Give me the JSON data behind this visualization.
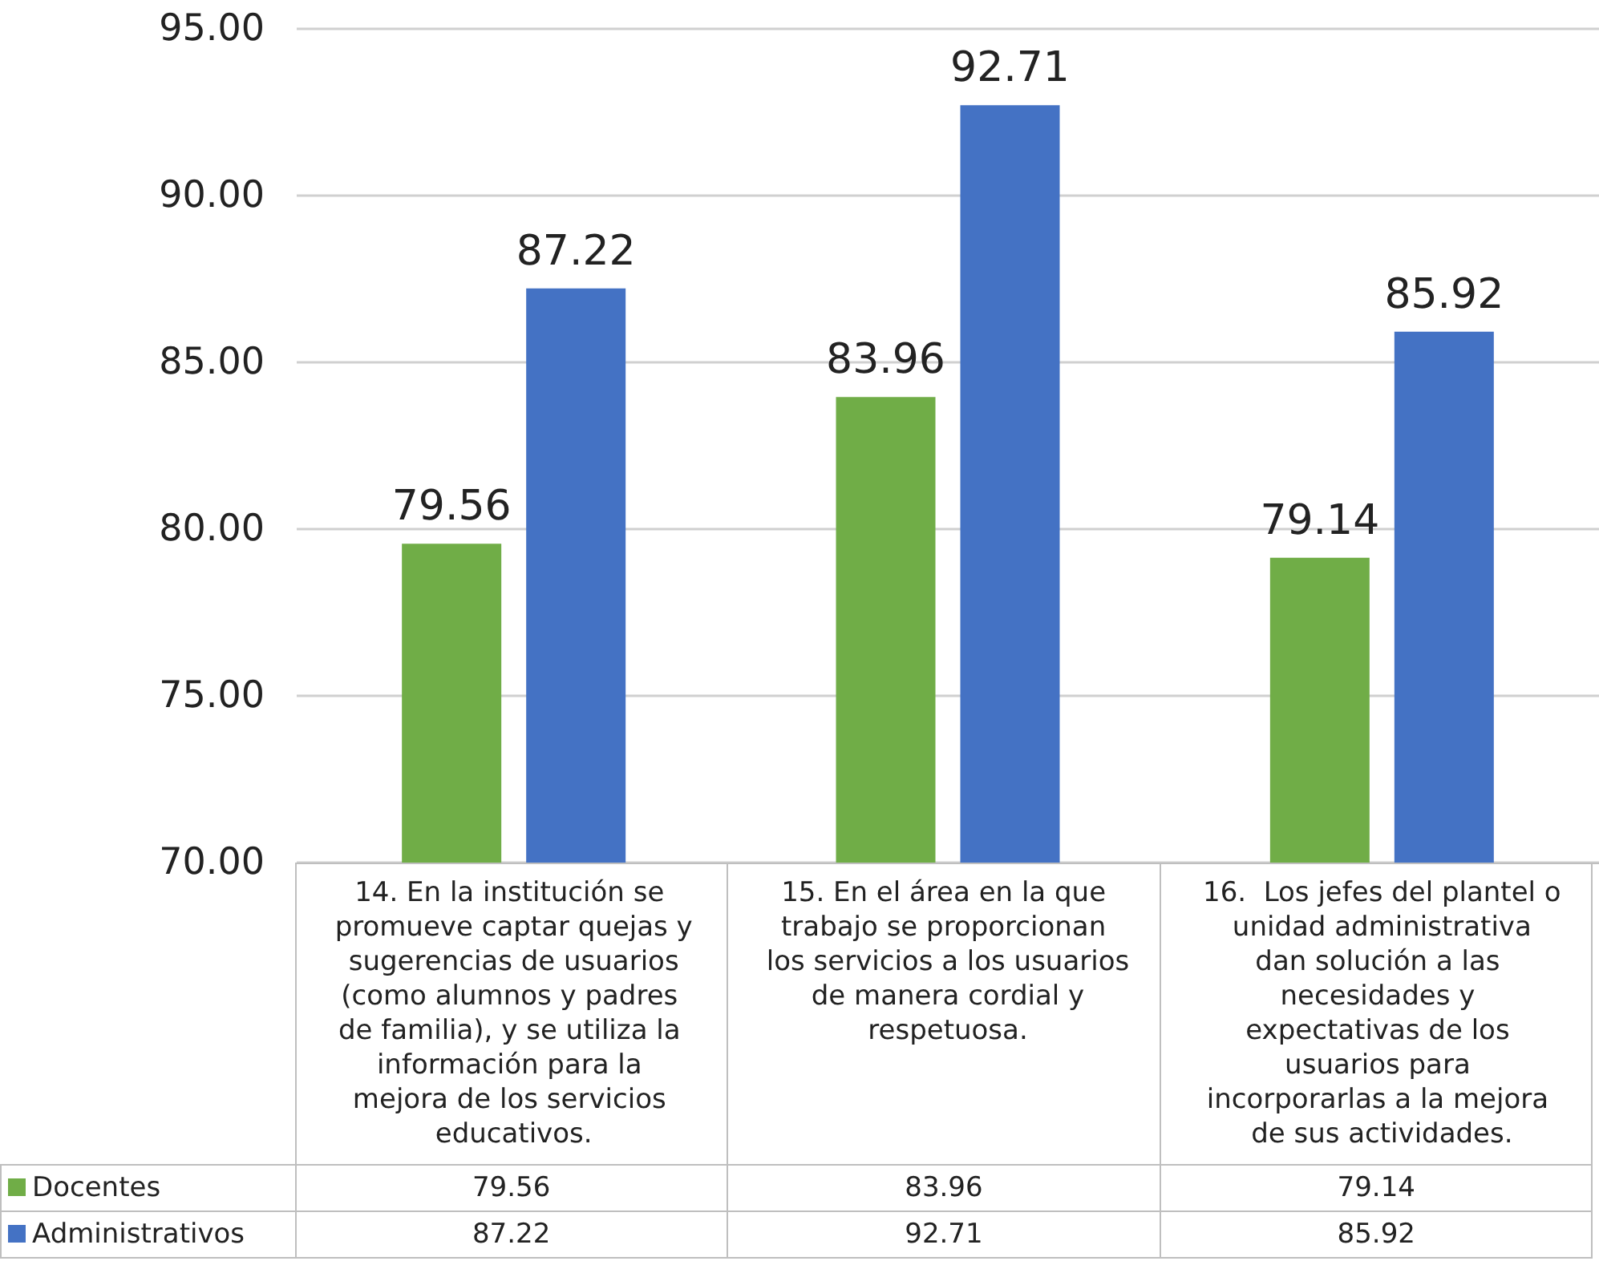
{
  "chart_data": {
    "type": "bar",
    "categories": [
      "14. En la institución se promueve captar quejas y sugerencias de usuarios (como alumnos y padres de familia), y se utiliza la información para la mejora de los servicios educativos.",
      "15. En el área en la que trabajo se proporcionan los servicios a los usuarios de manera cordial y respetuosa.",
      "16.  Los jefes del plantel o unidad administrativa dan solución a las necesidades y expectativas de los usuarios para incorporarlas a la mejora de sus actividades."
    ],
    "series": [
      {
        "name": "Docentes",
        "color": "#70ad47",
        "values": [
          79.56,
          83.96,
          79.14
        ],
        "value_labels": [
          "79.56",
          "83.96",
          "79.14"
        ]
      },
      {
        "name": "Administrativos",
        "color": "#4472c4",
        "values": [
          87.22,
          92.71,
          85.92
        ],
        "value_labels": [
          "87.22",
          "92.71",
          "85.92"
        ]
      }
    ],
    "ylim": [
      70,
      95
    ],
    "yticks": [
      {
        "value": 70,
        "label": "70.00"
      },
      {
        "value": 75,
        "label": "75.00"
      },
      {
        "value": 80,
        "label": "80.00"
      },
      {
        "value": 85,
        "label": "85.00"
      },
      {
        "value": 90,
        "label": "90.00"
      },
      {
        "value": 95,
        "label": "95.00"
      }
    ],
    "grid": "y",
    "data_labels": true,
    "legend": "bottom"
  }
}
